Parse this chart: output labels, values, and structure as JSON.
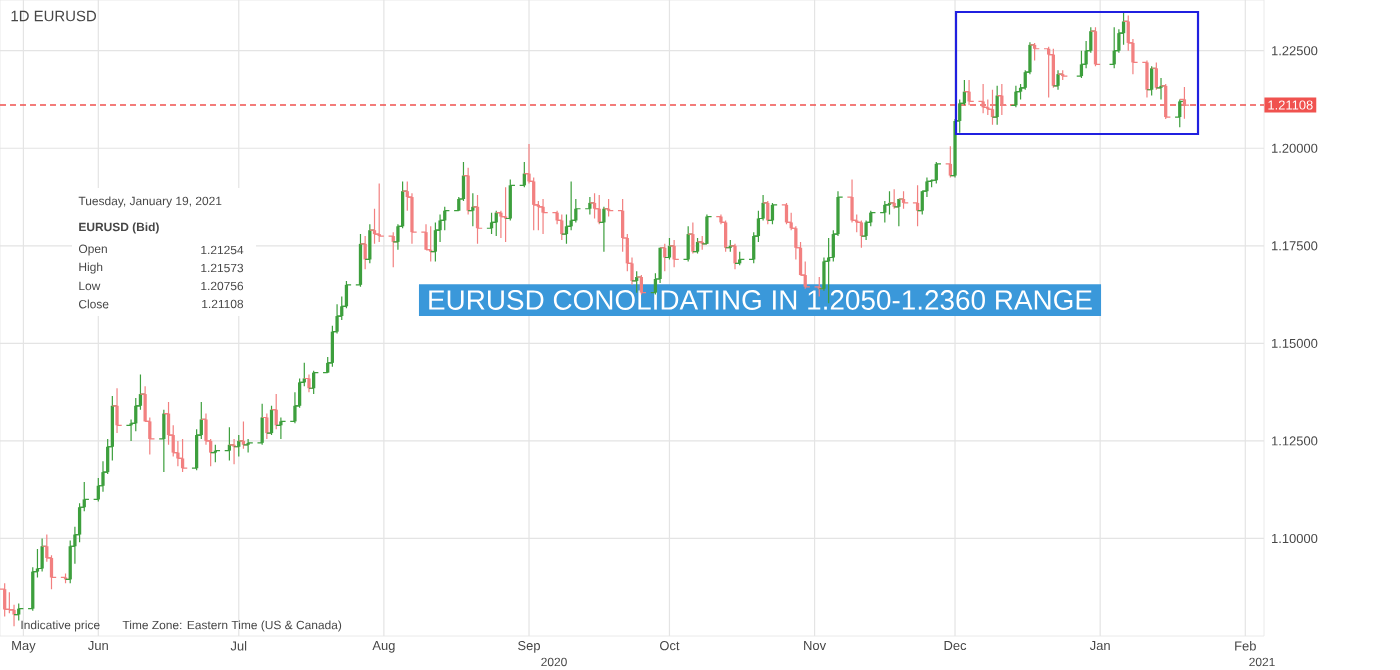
{
  "chart_data": {
    "type": "candlestick",
    "title": "1D    EURUSD",
    "x": [
      "2020-05-12",
      "2020-05-13",
      "2020-05-14",
      "2020-05-15",
      "2020-05-18",
      "2020-05-19",
      "2020-05-20",
      "2020-05-21",
      "2020-05-22",
      "2020-05-25",
      "2020-05-26",
      "2020-05-27",
      "2020-05-28",
      "2020-05-29",
      "2020-06-01",
      "2020-06-02",
      "2020-06-03",
      "2020-06-04",
      "2020-06-05",
      "2020-06-08",
      "2020-06-09",
      "2020-06-10",
      "2020-06-11",
      "2020-06-12",
      "2020-06-15",
      "2020-06-16",
      "2020-06-17",
      "2020-06-18",
      "2020-06-19",
      "2020-06-22",
      "2020-06-23",
      "2020-06-24",
      "2020-06-25",
      "2020-06-26",
      "2020-06-29",
      "2020-06-30",
      "2020-07-01",
      "2020-07-02",
      "2020-07-03",
      "2020-07-06",
      "2020-07-07",
      "2020-07-08",
      "2020-07-09",
      "2020-07-10",
      "2020-07-13",
      "2020-07-14",
      "2020-07-15",
      "2020-07-16",
      "2020-07-17",
      "2020-07-20",
      "2020-07-21",
      "2020-07-22",
      "2020-07-23",
      "2020-07-24",
      "2020-07-27",
      "2020-07-28",
      "2020-07-29",
      "2020-07-30",
      "2020-07-31",
      "2020-08-03",
      "2020-08-04",
      "2020-08-05",
      "2020-08-06",
      "2020-08-07",
      "2020-08-10",
      "2020-08-11",
      "2020-08-12",
      "2020-08-13",
      "2020-08-14",
      "2020-08-17",
      "2020-08-18",
      "2020-08-19",
      "2020-08-20",
      "2020-08-21",
      "2020-08-24",
      "2020-08-25",
      "2020-08-26",
      "2020-08-27",
      "2020-08-28",
      "2020-08-31",
      "2020-09-01",
      "2020-09-02",
      "2020-09-03",
      "2020-09-04",
      "2020-09-07",
      "2020-09-08",
      "2020-09-09",
      "2020-09-10",
      "2020-09-11",
      "2020-09-14",
      "2020-09-15",
      "2020-09-16",
      "2020-09-17",
      "2020-09-18",
      "2020-09-21",
      "2020-09-22",
      "2020-09-23",
      "2020-09-24",
      "2020-09-25",
      "2020-09-28",
      "2020-09-29",
      "2020-09-30",
      "2020-10-01",
      "2020-10-02",
      "2020-10-05",
      "2020-10-06",
      "2020-10-07",
      "2020-10-08",
      "2020-10-09",
      "2020-10-12",
      "2020-10-13",
      "2020-10-14",
      "2020-10-15",
      "2020-10-16",
      "2020-10-19",
      "2020-10-20",
      "2020-10-21",
      "2020-10-22",
      "2020-10-23",
      "2020-10-26",
      "2020-10-27",
      "2020-10-28",
      "2020-10-29",
      "2020-10-30",
      "2020-11-02",
      "2020-11-03",
      "2020-11-04",
      "2020-11-05",
      "2020-11-06",
      "2020-11-09",
      "2020-11-10",
      "2020-11-11",
      "2020-11-12",
      "2020-11-13",
      "2020-11-16",
      "2020-11-17",
      "2020-11-18",
      "2020-11-19",
      "2020-11-20",
      "2020-11-23",
      "2020-11-24",
      "2020-11-25",
      "2020-11-26",
      "2020-11-27",
      "2020-11-30",
      "2020-12-01",
      "2020-12-02",
      "2020-12-03",
      "2020-12-04",
      "2020-12-07",
      "2020-12-08",
      "2020-12-09",
      "2020-12-10",
      "2020-12-11",
      "2020-12-14",
      "2020-12-15",
      "2020-12-16",
      "2020-12-17",
      "2020-12-18",
      "2020-12-21",
      "2020-12-22",
      "2020-12-23",
      "2020-12-24",
      "2020-12-28",
      "2020-12-29",
      "2020-12-30",
      "2020-12-31",
      "2021-01-04",
      "2021-01-05",
      "2021-01-06",
      "2021-01-07",
      "2021-01-08",
      "2021-01-11",
      "2021-01-12",
      "2021-01-13",
      "2021-01-14",
      "2021-01-15",
      "2021-01-18",
      "2021-01-19"
    ],
    "ohlc": [
      [
        1.087,
        1.0885,
        1.08,
        1.0818
      ],
      [
        1.0818,
        1.0862,
        1.0808,
        1.0817
      ],
      [
        1.0817,
        1.083,
        1.0775,
        1.0805
      ],
      [
        1.0805,
        1.0833,
        1.079,
        1.082
      ],
      [
        1.082,
        1.0926,
        1.0815,
        1.0915
      ],
      [
        1.0915,
        1.0973,
        1.09,
        1.0923
      ],
      [
        1.0923,
        1.1,
        1.0915,
        1.098
      ],
      [
        1.098,
        1.101,
        1.094,
        1.095
      ],
      [
        1.095,
        1.0957,
        1.087,
        1.09
      ],
      [
        1.09,
        1.091,
        1.0885,
        1.0895
      ],
      [
        1.0895,
        1.0995,
        1.0885,
        1.098
      ],
      [
        1.098,
        1.103,
        1.0935,
        1.101
      ],
      [
        1.101,
        1.109,
        1.099,
        1.108
      ],
      [
        1.108,
        1.1145,
        1.107,
        1.11
      ],
      [
        1.11,
        1.1155,
        1.1095,
        1.1135
      ],
      [
        1.1135,
        1.1198,
        1.112,
        1.117
      ],
      [
        1.117,
        1.1255,
        1.1165,
        1.1235
      ],
      [
        1.1235,
        1.1365,
        1.12,
        1.134
      ],
      [
        1.134,
        1.1385,
        1.127,
        1.129
      ],
      [
        1.129,
        1.1305,
        1.125,
        1.1295
      ],
      [
        1.1295,
        1.136,
        1.1275,
        1.134
      ],
      [
        1.134,
        1.142,
        1.133,
        1.137
      ],
      [
        1.137,
        1.139,
        1.13,
        1.13
      ],
      [
        1.13,
        1.131,
        1.1215,
        1.1255
      ],
      [
        1.1255,
        1.133,
        1.117,
        1.132
      ],
      [
        1.132,
        1.135,
        1.124,
        1.1265
      ],
      [
        1.1265,
        1.129,
        1.121,
        1.122
      ],
      [
        1.122,
        1.125,
        1.1185,
        1.1205
      ],
      [
        1.1205,
        1.1255,
        1.117,
        1.118
      ],
      [
        1.118,
        1.128,
        1.1175,
        1.1265
      ],
      [
        1.1265,
        1.135,
        1.1255,
        1.1305
      ],
      [
        1.1305,
        1.132,
        1.124,
        1.125
      ],
      [
        1.125,
        1.1255,
        1.1185,
        1.122
      ],
      [
        1.122,
        1.124,
        1.1195,
        1.1225
      ],
      [
        1.1225,
        1.1285,
        1.12,
        1.124
      ],
      [
        1.124,
        1.1255,
        1.119,
        1.1235
      ],
      [
        1.1235,
        1.1265,
        1.121,
        1.125
      ],
      [
        1.125,
        1.13,
        1.123,
        1.124
      ],
      [
        1.124,
        1.1255,
        1.122,
        1.1245
      ],
      [
        1.1245,
        1.1345,
        1.124,
        1.131
      ],
      [
        1.131,
        1.132,
        1.1255,
        1.127
      ],
      [
        1.127,
        1.134,
        1.1265,
        1.133
      ],
      [
        1.133,
        1.137,
        1.128,
        1.129
      ],
      [
        1.129,
        1.131,
        1.1255,
        1.13
      ],
      [
        1.13,
        1.1375,
        1.1295,
        1.134
      ],
      [
        1.134,
        1.141,
        1.1335,
        1.14
      ],
      [
        1.14,
        1.145,
        1.139,
        1.141
      ],
      [
        1.141,
        1.142,
        1.1375,
        1.1385
      ],
      [
        1.1385,
        1.143,
        1.137,
        1.1425
      ],
      [
        1.1425,
        1.1465,
        1.1425,
        1.145
      ],
      [
        1.145,
        1.1545,
        1.144,
        1.153
      ],
      [
        1.153,
        1.16,
        1.1525,
        1.157
      ],
      [
        1.157,
        1.162,
        1.156,
        1.1595
      ],
      [
        1.1595,
        1.166,
        1.159,
        1.165
      ],
      [
        1.165,
        1.178,
        1.1645,
        1.1755
      ],
      [
        1.1755,
        1.1775,
        1.169,
        1.1715
      ],
      [
        1.1715,
        1.1805,
        1.1705,
        1.179
      ],
      [
        1.179,
        1.1845,
        1.1755,
        1.178
      ],
      [
        1.178,
        1.191,
        1.176,
        1.1775
      ],
      [
        1.1775,
        1.1785,
        1.1695,
        1.176
      ],
      [
        1.176,
        1.1805,
        1.174,
        1.18
      ],
      [
        1.18,
        1.1915,
        1.1795,
        1.189
      ],
      [
        1.189,
        1.1915,
        1.184,
        1.1875
      ],
      [
        1.1875,
        1.1885,
        1.1755,
        1.1785
      ],
      [
        1.1785,
        1.1805,
        1.174,
        1.174
      ],
      [
        1.174,
        1.18,
        1.171,
        1.1735
      ],
      [
        1.1735,
        1.181,
        1.171,
        1.179
      ],
      [
        1.179,
        1.183,
        1.176,
        1.1815
      ],
      [
        1.1815,
        1.185,
        1.179,
        1.184
      ],
      [
        1.184,
        1.1875,
        1.184,
        1.187
      ],
      [
        1.187,
        1.1965,
        1.1865,
        1.193
      ],
      [
        1.193,
        1.195,
        1.183,
        1.184
      ],
      [
        1.184,
        1.1885,
        1.18,
        1.185
      ],
      [
        1.185,
        1.188,
        1.1755,
        1.1795
      ],
      [
        1.1795,
        1.1835,
        1.178,
        1.181
      ],
      [
        1.181,
        1.184,
        1.1775,
        1.1835
      ],
      [
        1.1835,
        1.184,
        1.177,
        1.1825
      ],
      [
        1.1825,
        1.19,
        1.176,
        1.182
      ],
      [
        1.182,
        1.192,
        1.1815,
        1.1905
      ],
      [
        1.1905,
        1.1965,
        1.19,
        1.1935
      ],
      [
        1.1935,
        1.2011,
        1.191,
        1.1915
      ],
      [
        1.1915,
        1.1925,
        1.179,
        1.1855
      ],
      [
        1.1855,
        1.1865,
        1.179,
        1.185
      ],
      [
        1.185,
        1.187,
        1.178,
        1.1835
      ],
      [
        1.1835,
        1.184,
        1.1805,
        1.1815
      ],
      [
        1.1815,
        1.183,
        1.1765,
        1.178
      ],
      [
        1.178,
        1.183,
        1.1755,
        1.18
      ],
      [
        1.18,
        1.1915,
        1.179,
        1.1815
      ],
      [
        1.1815,
        1.187,
        1.181,
        1.1845
      ],
      [
        1.1845,
        1.1875,
        1.183,
        1.186
      ],
      [
        1.186,
        1.1885,
        1.182,
        1.1845
      ],
      [
        1.1845,
        1.188,
        1.1805,
        1.181
      ],
      [
        1.181,
        1.185,
        1.1735,
        1.1845
      ],
      [
        1.1845,
        1.187,
        1.1825,
        1.184
      ],
      [
        1.184,
        1.187,
        1.1735,
        1.177
      ],
      [
        1.177,
        1.178,
        1.1685,
        1.1705
      ],
      [
        1.1705,
        1.172,
        1.165,
        1.166
      ],
      [
        1.166,
        1.1685,
        1.163,
        1.167
      ],
      [
        1.167,
        1.1675,
        1.1625,
        1.163
      ],
      [
        1.163,
        1.168,
        1.1625,
        1.1665
      ],
      [
        1.1665,
        1.1745,
        1.1655,
        1.1745
      ],
      [
        1.1745,
        1.1755,
        1.1685,
        1.172
      ],
      [
        1.172,
        1.177,
        1.1715,
        1.175
      ],
      [
        1.175,
        1.1765,
        1.1695,
        1.1715
      ],
      [
        1.1715,
        1.18,
        1.171,
        1.178
      ],
      [
        1.178,
        1.181,
        1.173,
        1.1735
      ],
      [
        1.1735,
        1.177,
        1.173,
        1.176
      ],
      [
        1.176,
        1.1775,
        1.174,
        1.1755
      ],
      [
        1.1755,
        1.183,
        1.1755,
        1.1825
      ],
      [
        1.1825,
        1.183,
        1.1805,
        1.181
      ],
      [
        1.181,
        1.1815,
        1.1735,
        1.1745
      ],
      [
        1.1745,
        1.1765,
        1.1735,
        1.175
      ],
      [
        1.175,
        1.1755,
        1.169,
        1.1705
      ],
      [
        1.1705,
        1.1735,
        1.17,
        1.1715
      ],
      [
        1.1715,
        1.1785,
        1.1705,
        1.1775
      ],
      [
        1.1775,
        1.184,
        1.176,
        1.182
      ],
      [
        1.182,
        1.188,
        1.1815,
        1.186
      ],
      [
        1.186,
        1.1865,
        1.1805,
        1.1815
      ],
      [
        1.1815,
        1.186,
        1.1805,
        1.1855
      ],
      [
        1.1855,
        1.186,
        1.1805,
        1.181
      ],
      [
        1.181,
        1.1835,
        1.179,
        1.1795
      ],
      [
        1.1795,
        1.18,
        1.1715,
        1.1745
      ],
      [
        1.1745,
        1.176,
        1.1675,
        1.1675
      ],
      [
        1.1675,
        1.171,
        1.164,
        1.1645
      ],
      [
        1.1645,
        1.167,
        1.162,
        1.164
      ],
      [
        1.164,
        1.172,
        1.1635,
        1.171
      ],
      [
        1.171,
        1.177,
        1.1603,
        1.172
      ],
      [
        1.172,
        1.179,
        1.171,
        1.178
      ],
      [
        1.178,
        1.189,
        1.1775,
        1.1875
      ],
      [
        1.1875,
        1.192,
        1.181,
        1.1815
      ],
      [
        1.1815,
        1.183,
        1.1785,
        1.181
      ],
      [
        1.181,
        1.1815,
        1.1745,
        1.1775
      ],
      [
        1.1775,
        1.1815,
        1.1765,
        1.181
      ],
      [
        1.181,
        1.184,
        1.18,
        1.1835
      ],
      [
        1.1835,
        1.1865,
        1.181,
        1.1855
      ],
      [
        1.1855,
        1.189,
        1.183,
        1.186
      ],
      [
        1.186,
        1.1895,
        1.1845,
        1.185
      ],
      [
        1.185,
        1.187,
        1.18,
        1.187
      ],
      [
        1.187,
        1.189,
        1.1845,
        1.186
      ],
      [
        1.186,
        1.1905,
        1.18,
        1.184
      ],
      [
        1.184,
        1.189,
        1.183,
        1.189
      ],
      [
        1.189,
        1.1925,
        1.1875,
        1.1915
      ],
      [
        1.1915,
        1.192,
        1.19,
        1.1918
      ],
      [
        1.1918,
        1.1965,
        1.191,
        1.196
      ],
      [
        1.196,
        1.2005,
        1.1925,
        1.193
      ],
      [
        1.193,
        1.2075,
        1.1925,
        1.207
      ],
      [
        1.207,
        1.2125,
        1.204,
        1.2115
      ],
      [
        1.2115,
        1.2175,
        1.211,
        1.2145
      ],
      [
        1.2145,
        1.2175,
        1.211,
        1.212
      ],
      [
        1.212,
        1.2165,
        1.209,
        1.2105
      ],
      [
        1.2105,
        1.2125,
        1.2085,
        1.21
      ],
      [
        1.21,
        1.215,
        1.206,
        1.208
      ],
      [
        1.208,
        1.216,
        1.206,
        1.2135
      ],
      [
        1.2135,
        1.2165,
        1.2085,
        1.211
      ],
      [
        1.211,
        1.216,
        1.2105,
        1.2145
      ],
      [
        1.2145,
        1.2165,
        1.2125,
        1.2155
      ],
      [
        1.2155,
        1.22,
        1.215,
        1.2195
      ],
      [
        1.2195,
        1.2272,
        1.219,
        1.2265
      ],
      [
        1.2265,
        1.227,
        1.2225,
        1.2255
      ],
      [
        1.2255,
        1.226,
        1.213,
        1.224
      ],
      [
        1.224,
        1.2255,
        1.2155,
        1.216
      ],
      [
        1.216,
        1.22,
        1.215,
        1.219
      ],
      [
        1.219,
        1.22,
        1.2175,
        1.2185
      ],
      [
        1.2185,
        1.225,
        1.218,
        1.2215
      ],
      [
        1.2215,
        1.2275,
        1.2205,
        1.225
      ],
      [
        1.225,
        1.231,
        1.2245,
        1.23
      ],
      [
        1.23,
        1.231,
        1.221,
        1.2215
      ],
      [
        1.2215,
        1.231,
        1.2205,
        1.225
      ],
      [
        1.225,
        1.2305,
        1.2245,
        1.2295
      ],
      [
        1.2295,
        1.2349,
        1.2265,
        1.2325
      ],
      [
        1.2325,
        1.234,
        1.225,
        1.227
      ],
      [
        1.227,
        1.228,
        1.219,
        1.222
      ],
      [
        1.222,
        1.2225,
        1.213,
        1.215
      ],
      [
        1.215,
        1.221,
        1.2135,
        1.2205
      ],
      [
        1.2205,
        1.222,
        1.215,
        1.2155
      ],
      [
        1.2155,
        1.218,
        1.2125,
        1.216
      ],
      [
        1.216,
        1.2165,
        1.2075,
        1.208
      ],
      [
        1.208,
        1.2125,
        1.2054,
        1.212
      ],
      [
        1.21254,
        1.21573,
        1.20756,
        1.21108
      ]
    ],
    "colors": [
      "#f28080",
      "#f28080",
      "#f28080",
      "#3d9f3d",
      "#3d9f3d",
      "#3d9f3d",
      "#3d9f3d",
      "#f28080",
      "#f28080",
      "#f28080",
      "#3d9f3d",
      "#3d9f3d",
      "#3d9f3d",
      "#3d9f3d",
      "#3d9f3d",
      "#3d9f3d",
      "#3d9f3d",
      "#3d9f3d",
      "#f28080",
      "#3d9f3d",
      "#3d9f3d",
      "#3d9f3d",
      "#f28080",
      "#f28080",
      "#3d9f3d",
      "#f28080",
      "#f28080",
      "#f28080",
      "#f28080",
      "#3d9f3d",
      "#3d9f3d",
      "#f28080",
      "#f28080",
      "#3d9f3d",
      "#3d9f3d",
      "#f28080",
      "#3d9f3d",
      "#f28080",
      "#3d9f3d",
      "#3d9f3d",
      "#f28080",
      "#3d9f3d",
      "#f28080",
      "#3d9f3d",
      "#3d9f3d",
      "#3d9f3d",
      "#3d9f3d",
      "#f28080",
      "#3d9f3d",
      "#3d9f3d",
      "#3d9f3d",
      "#3d9f3d",
      "#3d9f3d",
      "#3d9f3d",
      "#3d9f3d",
      "#f28080",
      "#3d9f3d",
      "#f28080",
      "#f28080",
      "#f28080",
      "#3d9f3d",
      "#3d9f3d",
      "#f28080",
      "#f28080",
      "#f28080",
      "#f28080",
      "#3d9f3d",
      "#3d9f3d",
      "#3d9f3d",
      "#3d9f3d",
      "#3d9f3d",
      "#f28080",
      "#3d9f3d",
      "#f28080",
      "#3d9f3d",
      "#3d9f3d",
      "#f28080",
      "#f28080",
      "#3d9f3d",
      "#3d9f3d",
      "#f28080",
      "#f28080",
      "#f28080",
      "#f28080",
      "#f28080",
      "#f28080",
      "#3d9f3d",
      "#3d9f3d",
      "#3d9f3d",
      "#3d9f3d",
      "#f28080",
      "#f28080",
      "#3d9f3d",
      "#f28080",
      "#f28080",
      "#f28080",
      "#f28080",
      "#3d9f3d",
      "#f28080",
      "#3d9f3d",
      "#3d9f3d",
      "#f28080",
      "#3d9f3d",
      "#f28080",
      "#3d9f3d",
      "#f28080",
      "#3d9f3d",
      "#f28080",
      "#3d9f3d",
      "#f28080",
      "#f28080",
      "#3d9f3d",
      "#f28080",
      "#3d9f3d",
      "#3d9f3d",
      "#3d9f3d",
      "#3d9f3d",
      "#f28080",
      "#3d9f3d",
      "#f28080",
      "#f28080",
      "#f28080",
      "#f28080",
      "#f28080",
      "#f28080",
      "#3d9f3d",
      "#3d9f3d",
      "#3d9f3d",
      "#3d9f3d",
      "#f28080",
      "#f28080",
      "#f28080",
      "#3d9f3d",
      "#3d9f3d",
      "#3d9f3d",
      "#3d9f3d",
      "#f28080",
      "#3d9f3d",
      "#f28080",
      "#f28080",
      "#3d9f3d",
      "#3d9f3d",
      "#3d9f3d",
      "#3d9f3d",
      "#f28080",
      "#3d9f3d",
      "#3d9f3d",
      "#3d9f3d",
      "#f28080",
      "#f28080",
      "#f28080",
      "#f28080",
      "#3d9f3d",
      "#f28080",
      "#3d9f3d",
      "#3d9f3d",
      "#3d9f3d",
      "#3d9f3d",
      "#f28080",
      "#f28080",
      "#f28080",
      "#3d9f3d",
      "#f28080",
      "#3d9f3d",
      "#3d9f3d",
      "#3d9f3d",
      "#f28080",
      "#3d9f3d",
      "#3d9f3d",
      "#3d9f3d",
      "#f28080",
      "#f28080",
      "#f28080",
      "#3d9f3d",
      "#f28080",
      "#3d9f3d",
      "#f28080",
      "#3d9f3d",
      "#f28080"
    ],
    "xlim": [
      "2020-05-11",
      "2021-02-05"
    ],
    "xticks": [
      {
        "value": "2020-05-16",
        "label": "May"
      },
      {
        "value": "2020-06-01",
        "label": "Jun"
      },
      {
        "value": "2020-07-01",
        "label": "Jul"
      },
      {
        "value": "2020-08-01",
        "label": "Aug"
      },
      {
        "value": "2020-09-01",
        "label": "Sep"
      },
      {
        "value": "2020-10-01",
        "label": "Oct"
      },
      {
        "value": "2020-11-01",
        "label": "Nov"
      },
      {
        "value": "2020-12-01",
        "label": "Dec"
      },
      {
        "value": "2021-01-01",
        "label": "Jan"
      },
      {
        "value": "2021-02-01",
        "label": "Feb"
      }
    ],
    "ylim": [
      1.075,
      1.238
    ],
    "yticks": [
      {
        "value": 1.1,
        "label": "1.10000"
      },
      {
        "value": 1.125,
        "label": "1.12500"
      },
      {
        "value": 1.15,
        "label": "1.15000"
      },
      {
        "value": 1.175,
        "label": "1.17500"
      },
      {
        "value": 1.2,
        "label": "1.20000"
      },
      {
        "value": 1.225,
        "label": "1.22500"
      }
    ],
    "grid": true,
    "ref_lines": [
      {
        "axis": "y",
        "value": 1.21108,
        "label": "1.21108",
        "color": "#f0524f",
        "line_style": "dashed"
      }
    ],
    "annotations": [
      "Tuesday, January 19, 2021",
      "EURUSD (Bid)",
      "Open",
      "1.21254",
      "High",
      "1.21573",
      "Low",
      "1.20756",
      "Close",
      "1.21108",
      "Indicative price",
      "Time Zone: Eastern Time (US & Canada)",
      "EURUSD CONOLIDATING IN 1.2050-1.2360 RANGE",
      "2020",
      "2021"
    ]
  }
}
